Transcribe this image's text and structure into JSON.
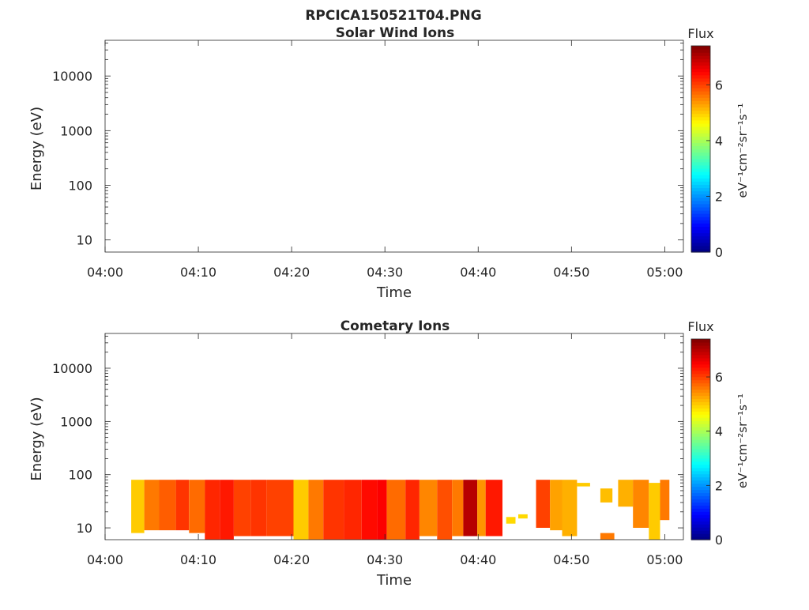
{
  "figure": {
    "title": "RPCICA150521T04.PNG"
  },
  "colorbar": {
    "label": "Flux",
    "unit_label": "eV⁻¹cm⁻²sr⁻¹s⁻¹",
    "ticks": [
      "0",
      "2",
      "4",
      "6"
    ],
    "range": [
      0,
      7.4
    ],
    "colormap": "jet"
  },
  "chart_data": [
    {
      "type": "heatmap",
      "title": "Solar Wind Ions",
      "xlabel": "Time",
      "ylabel": "Energy (eV)",
      "x_ticks": [
        "04:00",
        "04:10",
        "04:20",
        "04:30",
        "04:40",
        "04:50",
        "05:00"
      ],
      "y_ticks": [
        "10",
        "100",
        "1000",
        "10000"
      ],
      "y_scale": "log",
      "xlim_minutes": [
        0,
        62
      ],
      "ylim_eV": [
        6,
        45000
      ],
      "cells": []
    },
    {
      "type": "heatmap",
      "title": "Cometary Ions",
      "xlabel": "Time",
      "ylabel": "Energy (eV)",
      "x_ticks": [
        "04:00",
        "04:10",
        "04:20",
        "04:30",
        "04:40",
        "04:50",
        "05:00"
      ],
      "y_ticks": [
        "10",
        "100",
        "1000",
        "10000"
      ],
      "y_scale": "log",
      "xlim_minutes": [
        0,
        62
      ],
      "ylim_eV": [
        6,
        45000
      ],
      "cells": [
        {
          "t0": 2.8,
          "t1": 4.2,
          "e0": 8,
          "e1": 80,
          "v": 5.0
        },
        {
          "t0": 4.2,
          "t1": 5.8,
          "e0": 9,
          "e1": 80,
          "v": 5.6
        },
        {
          "t0": 5.8,
          "t1": 7.6,
          "e0": 9,
          "e1": 80,
          "v": 5.8
        },
        {
          "t0": 7.6,
          "t1": 9.0,
          "e0": 9,
          "e1": 80,
          "v": 6.1
        },
        {
          "t0": 9.0,
          "t1": 10.7,
          "e0": 8,
          "e1": 80,
          "v": 5.7
        },
        {
          "t0": 10.7,
          "t1": 12.3,
          "e0": 6,
          "e1": 80,
          "v": 6.2
        },
        {
          "t0": 12.3,
          "t1": 13.8,
          "e0": 6,
          "e1": 80,
          "v": 6.3
        },
        {
          "t0": 13.8,
          "t1": 15.6,
          "e0": 7,
          "e1": 80,
          "v": 6.0
        },
        {
          "t0": 15.6,
          "t1": 17.3,
          "e0": 7,
          "e1": 80,
          "v": 6.1
        },
        {
          "t0": 17.3,
          "t1": 20.2,
          "e0": 7,
          "e1": 80,
          "v": 6.0
        },
        {
          "t0": 20.2,
          "t1": 21.8,
          "e0": 6,
          "e1": 80,
          "v": 5.0
        },
        {
          "t0": 21.8,
          "t1": 23.4,
          "e0": 6,
          "e1": 80,
          "v": 5.6
        },
        {
          "t0": 23.4,
          "t1": 25.6,
          "e0": 6,
          "e1": 80,
          "v": 6.1
        },
        {
          "t0": 25.6,
          "t1": 27.5,
          "e0": 6,
          "e1": 80,
          "v": 6.2
        },
        {
          "t0": 27.5,
          "t1": 29.2,
          "e0": 6,
          "e1": 80,
          "v": 6.4
        },
        {
          "t0": 29.2,
          "t1": 30.2,
          "e0": 6,
          "e1": 80,
          "v": 6.5
        },
        {
          "t0": 30.2,
          "t1": 32.2,
          "e0": 6,
          "e1": 80,
          "v": 5.7
        },
        {
          "t0": 32.2,
          "t1": 33.7,
          "e0": 6,
          "e1": 80,
          "v": 6.2
        },
        {
          "t0": 33.7,
          "t1": 35.6,
          "e0": 7,
          "e1": 80,
          "v": 5.5
        },
        {
          "t0": 35.6,
          "t1": 37.2,
          "e0": 6,
          "e1": 80,
          "v": 5.9
        },
        {
          "t0": 37.2,
          "t1": 38.4,
          "e0": 7,
          "e1": 80,
          "v": 5.6
        },
        {
          "t0": 38.4,
          "t1": 39.9,
          "e0": 7,
          "e1": 80,
          "v": 7.0
        },
        {
          "t0": 39.9,
          "t1": 40.8,
          "e0": 7,
          "e1": 80,
          "v": 5.4
        },
        {
          "t0": 40.8,
          "t1": 42.6,
          "e0": 7,
          "e1": 80,
          "v": 6.3
        },
        {
          "t0": 43.0,
          "t1": 44.0,
          "e0": 12,
          "e1": 16,
          "v": 4.9
        },
        {
          "t0": 44.3,
          "t1": 45.3,
          "e0": 15,
          "e1": 18,
          "v": 4.9
        },
        {
          "t0": 46.2,
          "t1": 47.7,
          "e0": 10,
          "e1": 80,
          "v": 6.0
        },
        {
          "t0": 47.7,
          "t1": 49.0,
          "e0": 9,
          "e1": 80,
          "v": 5.3
        },
        {
          "t0": 49.0,
          "t1": 50.6,
          "e0": 7,
          "e1": 80,
          "v": 5.2
        },
        {
          "t0": 50.6,
          "t1": 52.0,
          "e0": 60,
          "e1": 70,
          "v": 5.0
        },
        {
          "t0": 53.1,
          "t1": 54.4,
          "e0": 30,
          "e1": 55,
          "v": 5.1
        },
        {
          "t0": 53.1,
          "t1": 54.6,
          "e0": 6,
          "e1": 8,
          "v": 5.6
        },
        {
          "t0": 55.0,
          "t1": 56.6,
          "e0": 25,
          "e1": 80,
          "v": 5.2
        },
        {
          "t0": 56.6,
          "t1": 58.3,
          "e0": 10,
          "e1": 80,
          "v": 5.5
        },
        {
          "t0": 58.3,
          "t1": 59.5,
          "e0": 6,
          "e1": 70,
          "v": 5.0
        },
        {
          "t0": 59.5,
          "t1": 60.5,
          "e0": 14,
          "e1": 80,
          "v": 5.6
        }
      ]
    }
  ]
}
